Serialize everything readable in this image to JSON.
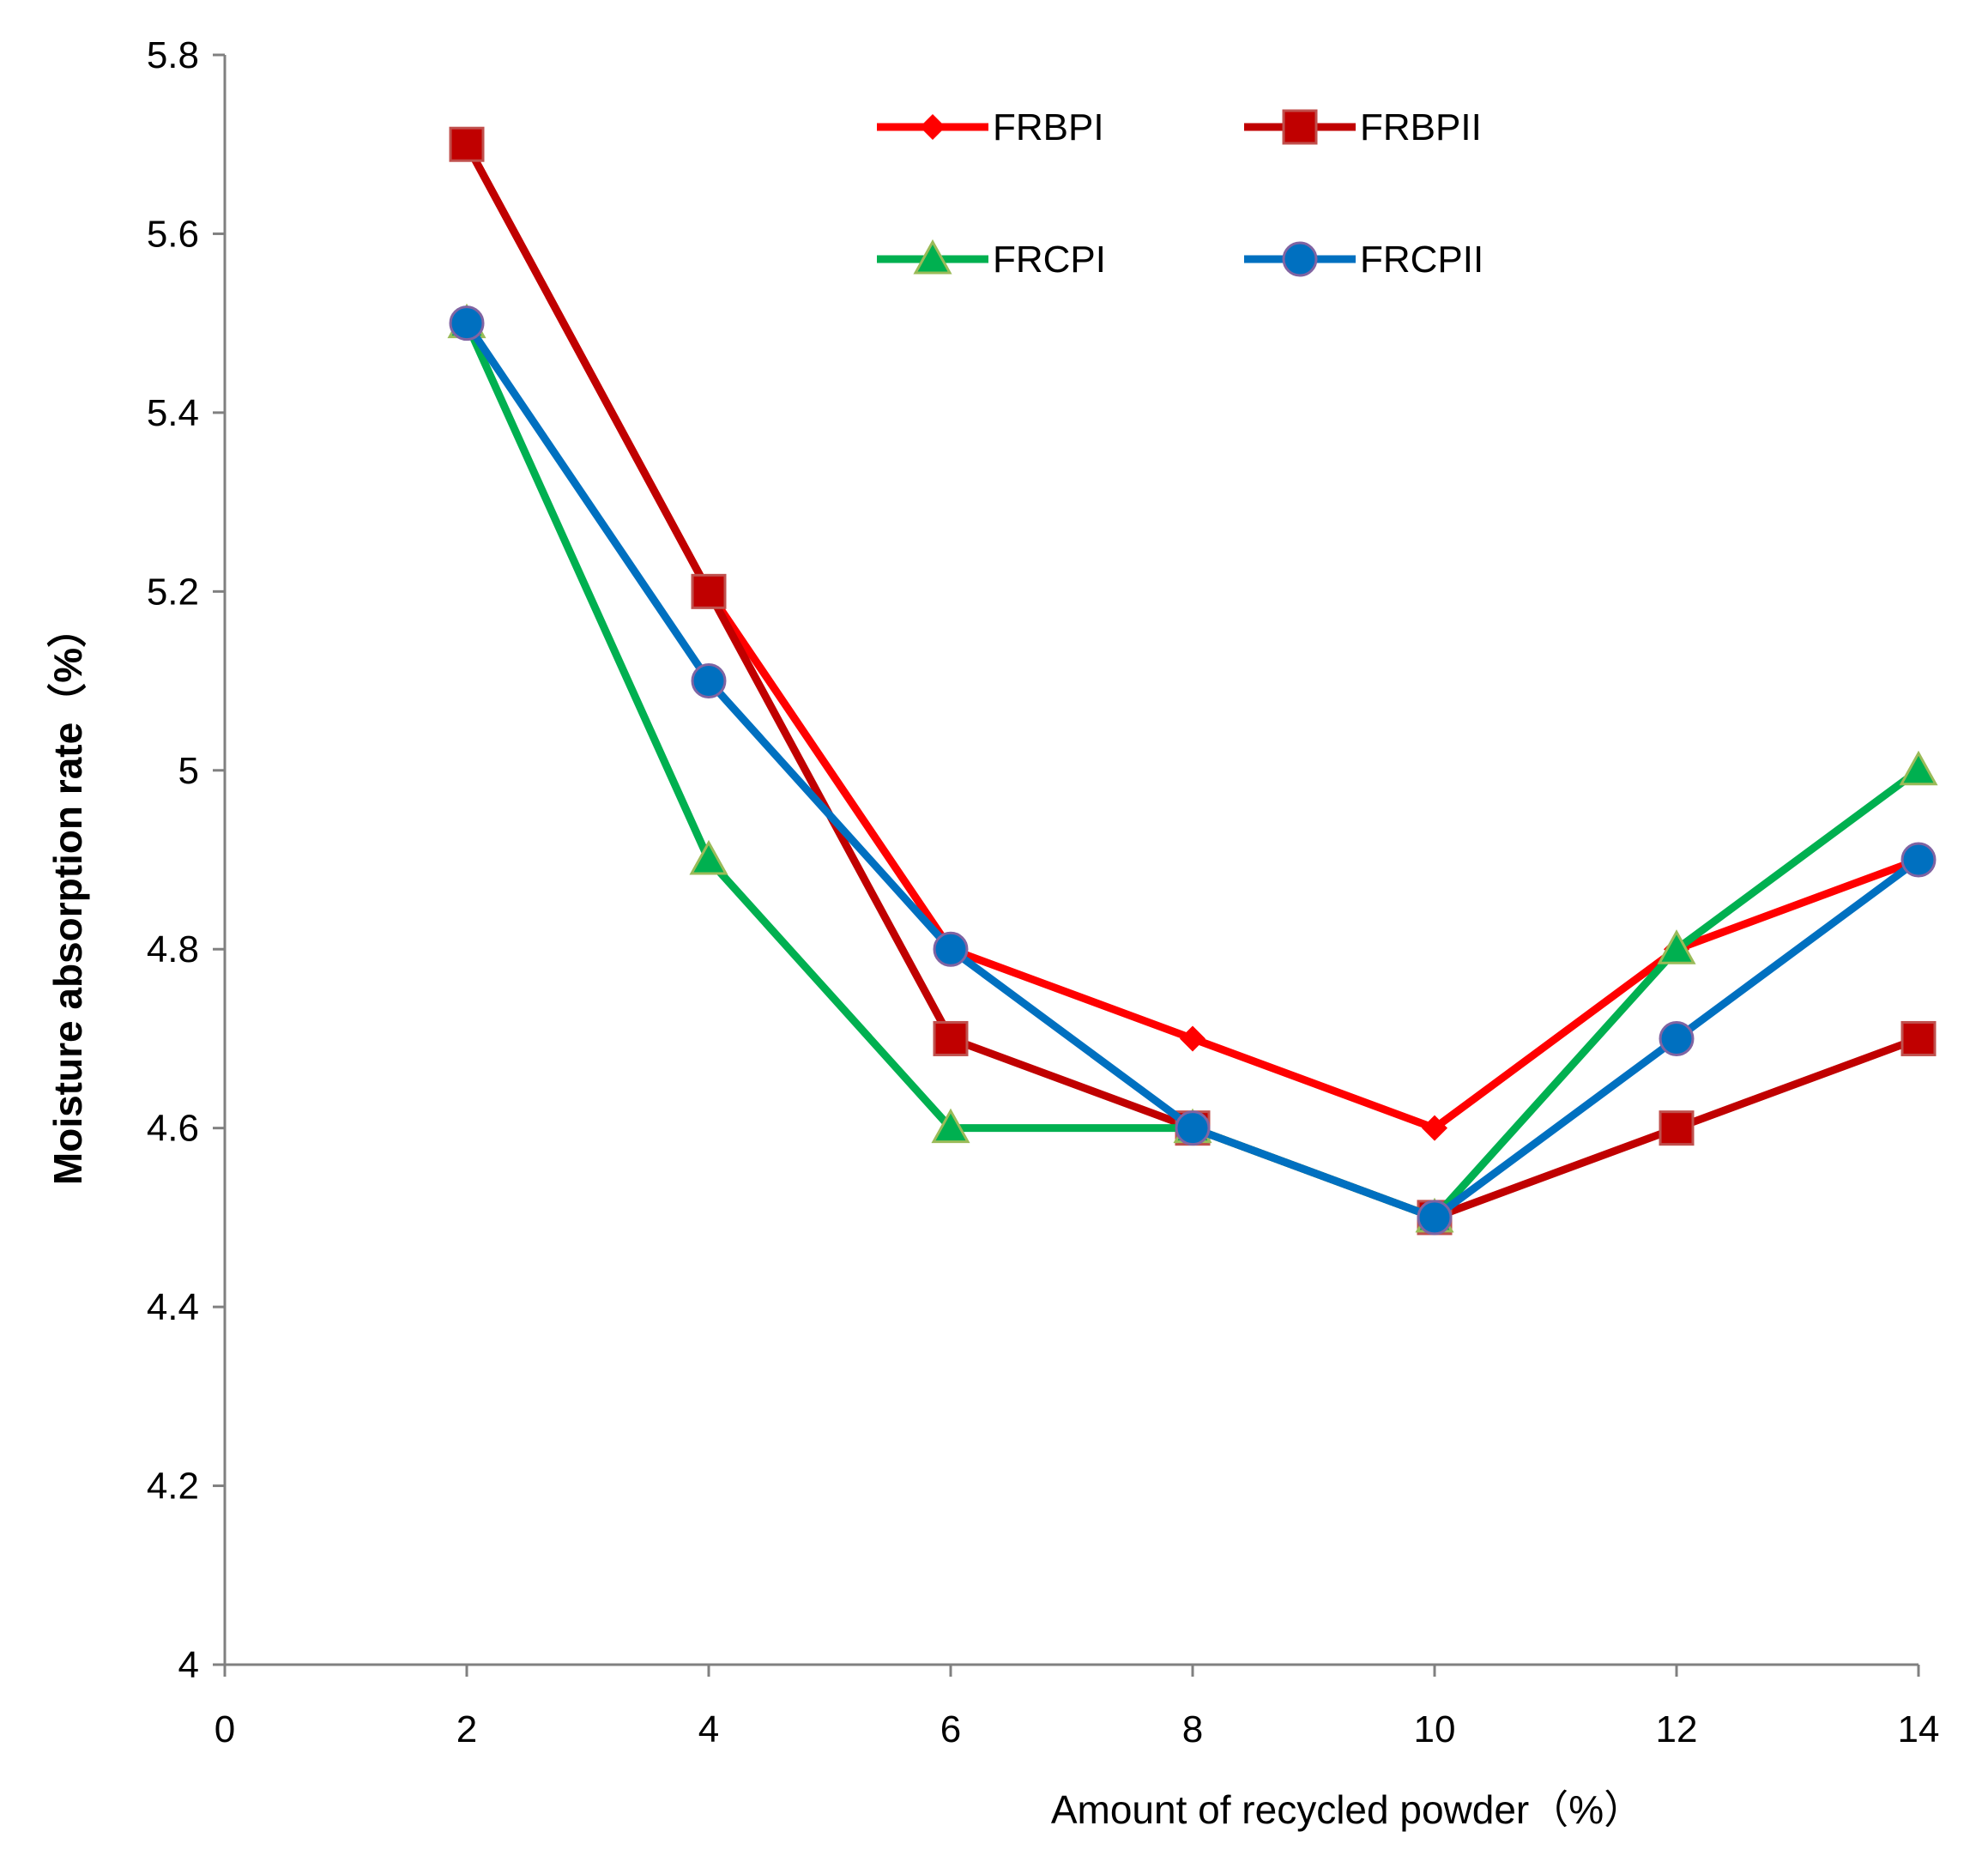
{
  "chart_data": {
    "type": "line",
    "title": "",
    "xlabel": "Amount of recycled powder（%）",
    "ylabel": "Moisture absorption rate（%）",
    "xlim": [
      0,
      14
    ],
    "ylim": [
      4,
      5.8
    ],
    "x_ticks": [
      0,
      2,
      4,
      6,
      8,
      10,
      12,
      14
    ],
    "y_ticks": [
      4,
      4.2,
      4.4,
      4.6,
      4.8,
      5,
      5.2,
      5.4,
      5.6,
      5.8
    ],
    "x_tick_labels": [
      "0",
      "2",
      "4",
      "6",
      "8",
      "10",
      "12",
      "14"
    ],
    "y_tick_labels": [
      "4",
      "4.2",
      "4.4",
      "4.6",
      "4.8",
      "5",
      "5.2",
      "5.4",
      "5.6",
      "5.8"
    ],
    "grid": false,
    "legend_position": "top-right",
    "x": [
      2,
      4,
      6,
      8,
      10,
      12,
      14
    ],
    "series": [
      {
        "name": "FRBPI",
        "color": "#ff0000",
        "marker": "diamond",
        "values": [
          5.7,
          5.2,
          4.8,
          4.7,
          4.6,
          4.8,
          4.9
        ]
      },
      {
        "name": "FRBPII",
        "color": "#c00000",
        "marker": "square",
        "values": [
          5.7,
          5.2,
          4.7,
          4.6,
          4.5,
          4.6,
          4.7
        ]
      },
      {
        "name": "FRCPI",
        "color": "#00b050",
        "marker": "triangle",
        "values": [
          5.5,
          4.9,
          4.6,
          4.6,
          4.5,
          4.8,
          5.0
        ]
      },
      {
        "name": "FRCPII",
        "color": "#0070c0",
        "marker": "circle",
        "values": [
          5.5,
          5.1,
          4.8,
          4.6,
          4.5,
          4.7,
          4.9
        ]
      }
    ]
  }
}
